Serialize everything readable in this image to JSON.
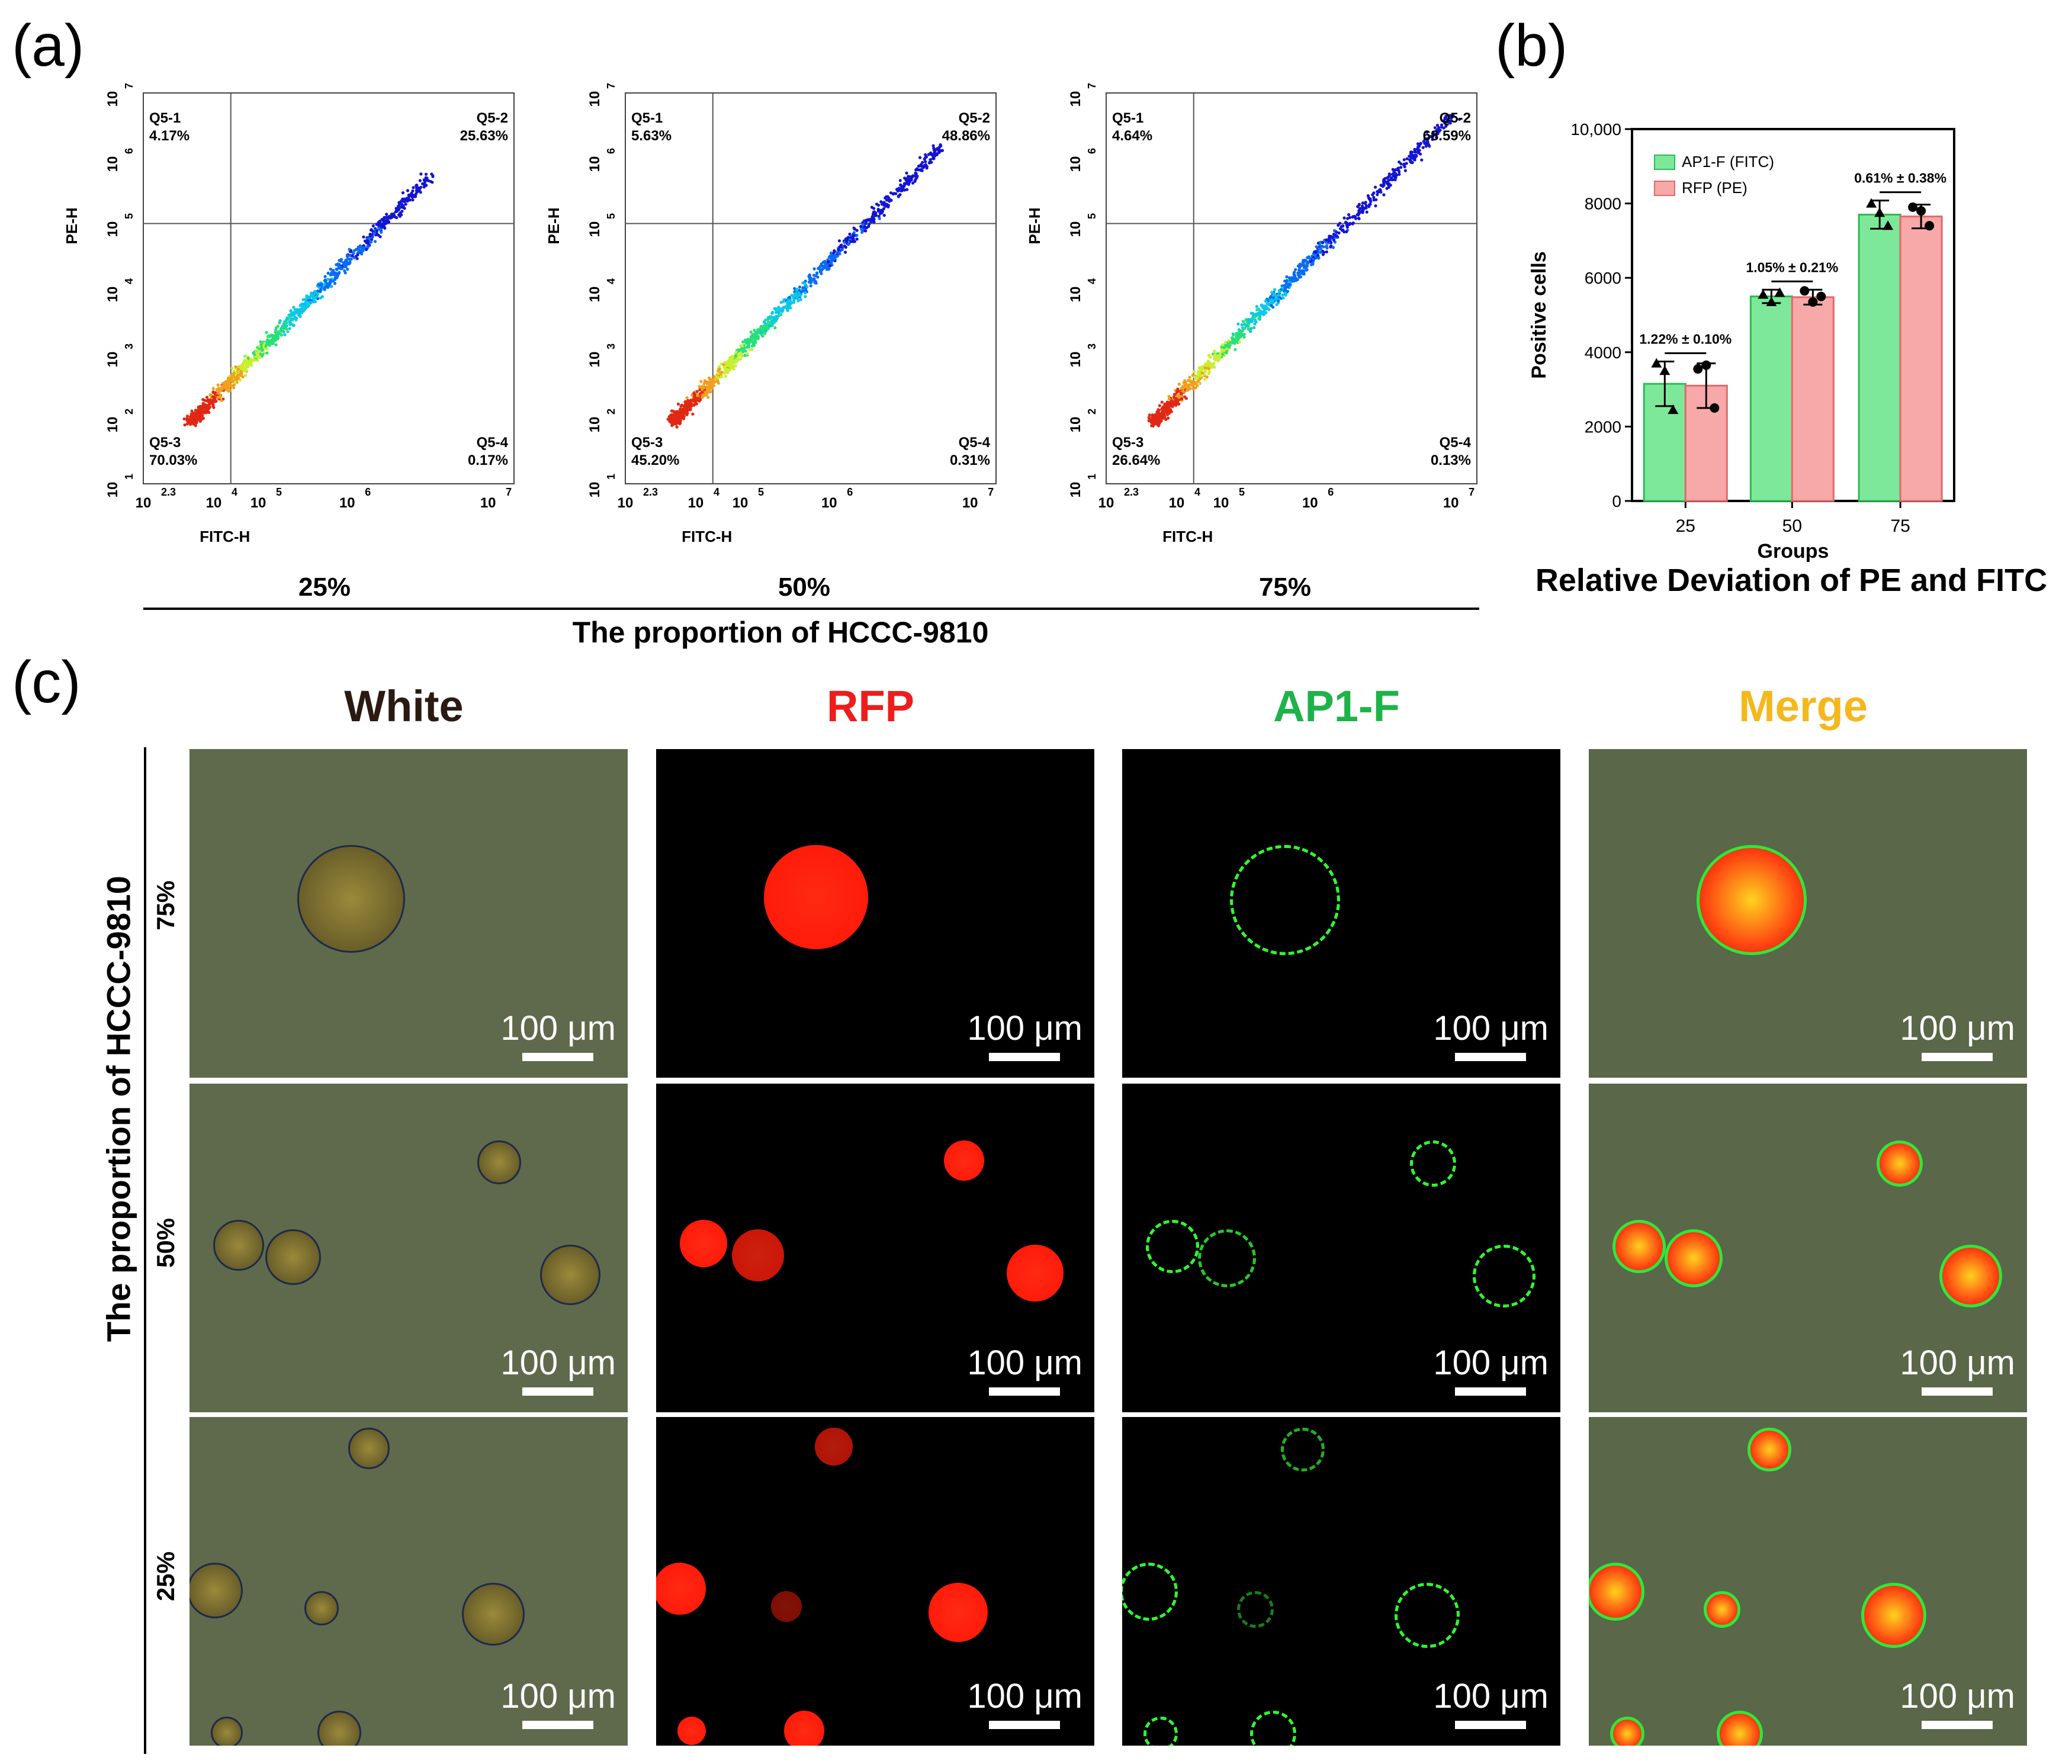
{
  "panel_letters": {
    "a": "(a)",
    "b": "(b)",
    "c": "(c)"
  },
  "colors": {
    "afitc": "#7ee89a",
    "rfp_pe": "#f7a8a8",
    "white_bg": "#5f6a4c",
    "rfp_red": "#ff1a0a",
    "ap1_green": "#2eff2e",
    "head_white": "#2b1a12",
    "head_rfp": "#ee1c1c",
    "head_ap1": "#1eb34a",
    "head_merge": "#f5b81c"
  },
  "chart_data": [
    {
      "type": "scatter",
      "title": "25%",
      "xlabel": "FITC-H",
      "ylabel": "PE-H",
      "x_ticks": [
        "10 2.3",
        "10 4",
        "10 5",
        "10 6",
        "10 7"
      ],
      "y_ticks": [
        "10 1",
        "10 2",
        "10 3",
        "10 4",
        "10 5",
        "10 6",
        "10 7"
      ],
      "quadrants": [
        {
          "name": "Q5-1",
          "value": "4.17%"
        },
        {
          "name": "Q5-2",
          "value": "25.63%"
        },
        {
          "name": "Q5-3",
          "value": "70.03%"
        },
        {
          "name": "Q5-4",
          "value": "0.17%"
        }
      ]
    },
    {
      "type": "scatter",
      "title": "50%",
      "xlabel": "FITC-H",
      "ylabel": "PE-H",
      "x_ticks": [
        "10 2.3",
        "10 4",
        "10 5",
        "10 6",
        "10 7"
      ],
      "y_ticks": [
        "10 1",
        "10 2",
        "10 3",
        "10 4",
        "10 5",
        "10 6",
        "10 7"
      ],
      "quadrants": [
        {
          "name": "Q5-1",
          "value": "5.63%"
        },
        {
          "name": "Q5-2",
          "value": "48.86%"
        },
        {
          "name": "Q5-3",
          "value": "45.20%"
        },
        {
          "name": "Q5-4",
          "value": "0.31%"
        }
      ]
    },
    {
      "type": "scatter",
      "title": "75%",
      "xlabel": "FITC-H",
      "ylabel": "PE-H",
      "x_ticks": [
        "10 2.3",
        "10 4",
        "10 5",
        "10 6",
        "10 7"
      ],
      "y_ticks": [
        "10 1",
        "10 2",
        "10 3",
        "10 4",
        "10 5",
        "10 6",
        "10 7"
      ],
      "quadrants": [
        {
          "name": "Q5-1",
          "value": "4.64%"
        },
        {
          "name": "Q5-2",
          "value": "68.59%"
        },
        {
          "name": "Q5-3",
          "value": "26.64%"
        },
        {
          "name": "Q5-4",
          "value": "0.13%"
        }
      ]
    },
    {
      "type": "bar",
      "title": "Relative Deviation of PE and FITC",
      "xlabel": "Groups",
      "ylabel": "Positive cells",
      "categories": [
        "25",
        "50",
        "75"
      ],
      "ylim": [
        0,
        10000
      ],
      "y_ticks": [
        "0",
        "2000",
        "4000",
        "6000",
        "8000",
        "10,000"
      ],
      "y_tick_values": [
        0,
        2000,
        4000,
        6000,
        8000,
        10000
      ],
      "legend": "top-left",
      "series": [
        {
          "name": "AP1-F (FITC)",
          "values": [
            3150,
            5500,
            7700
          ],
          "errors": [
            600,
            180,
            380
          ],
          "points": [
            [
              3700,
              3500,
              2450
            ],
            [
              5550,
              5350,
              5600
            ],
            [
              8000,
              7750,
              7400
            ]
          ]
        },
        {
          "name": "RFP (PE)",
          "values": [
            3100,
            5480,
            7650
          ],
          "errors": [
            600,
            200,
            320
          ],
          "points": [
            [
              3550,
              3650,
              2500
            ],
            [
              5650,
              5350,
              5500
            ],
            [
              7900,
              7800,
              7400
            ]
          ]
        }
      ],
      "annotations": [
        "1.22% ± 0.10%",
        "1.05% ± 0.21%",
        "0.61% ± 0.38%"
      ]
    }
  ],
  "group_axis": {
    "levels": [
      "25%",
      "50%",
      "75%"
    ],
    "title": "The proportion of HCCC-9810"
  },
  "panel_c": {
    "columns": [
      "White",
      "RFP",
      "AP1-F",
      "Merge"
    ],
    "rows": [
      "75%",
      "50%",
      "25%"
    ],
    "side_title": "The proportion of HCCC-9810",
    "scale_label": "100 μm"
  }
}
